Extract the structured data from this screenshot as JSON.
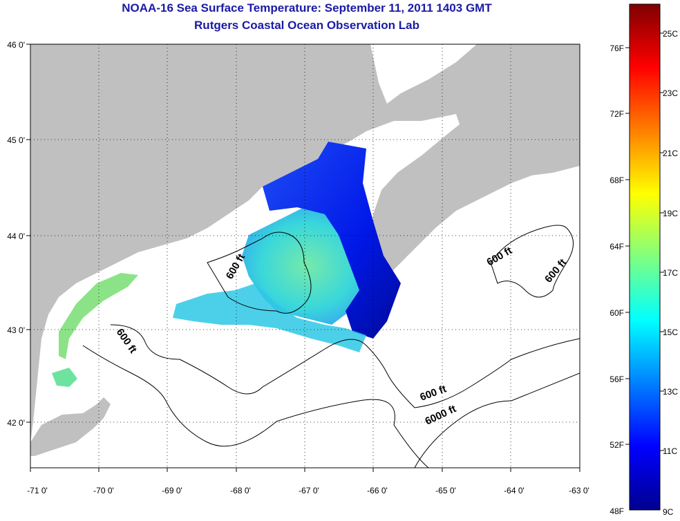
{
  "title": {
    "line1": "NOAA-16 Sea Surface Temperature:  September 11, 2011 1403 GMT",
    "line2": "Rutgers Coastal Ocean Observation Lab"
  },
  "map": {
    "lat_labels": [
      "46 0'",
      "45 0'",
      "44 0'",
      "43 0'",
      "42 0'"
    ],
    "lon_labels": [
      "-71 0'",
      "-70 0'",
      "-69 0'",
      "-68 0'",
      "-67 0'",
      "-66 0'",
      "-65 0'",
      "-64 0'",
      "-63 0'"
    ],
    "contour_labels": [
      "600 ft",
      "600 ft",
      "600 ft",
      "600 ft",
      "600 ft",
      "6000 ft"
    ],
    "colors": {
      "land": "#c0c0c0",
      "water_nodata": "#ffffff",
      "grid": "#000000"
    }
  },
  "colorbar": {
    "fahrenheit_labels": [
      "76F",
      "72F",
      "68F",
      "64F",
      "60F",
      "56F",
      "52F",
      "48F"
    ],
    "celsius_labels": [
      "25C",
      "23C",
      "21C",
      "19C",
      "17C",
      "15C",
      "13C",
      "11C",
      "9C"
    ],
    "range_c": [
      9,
      26
    ]
  }
}
